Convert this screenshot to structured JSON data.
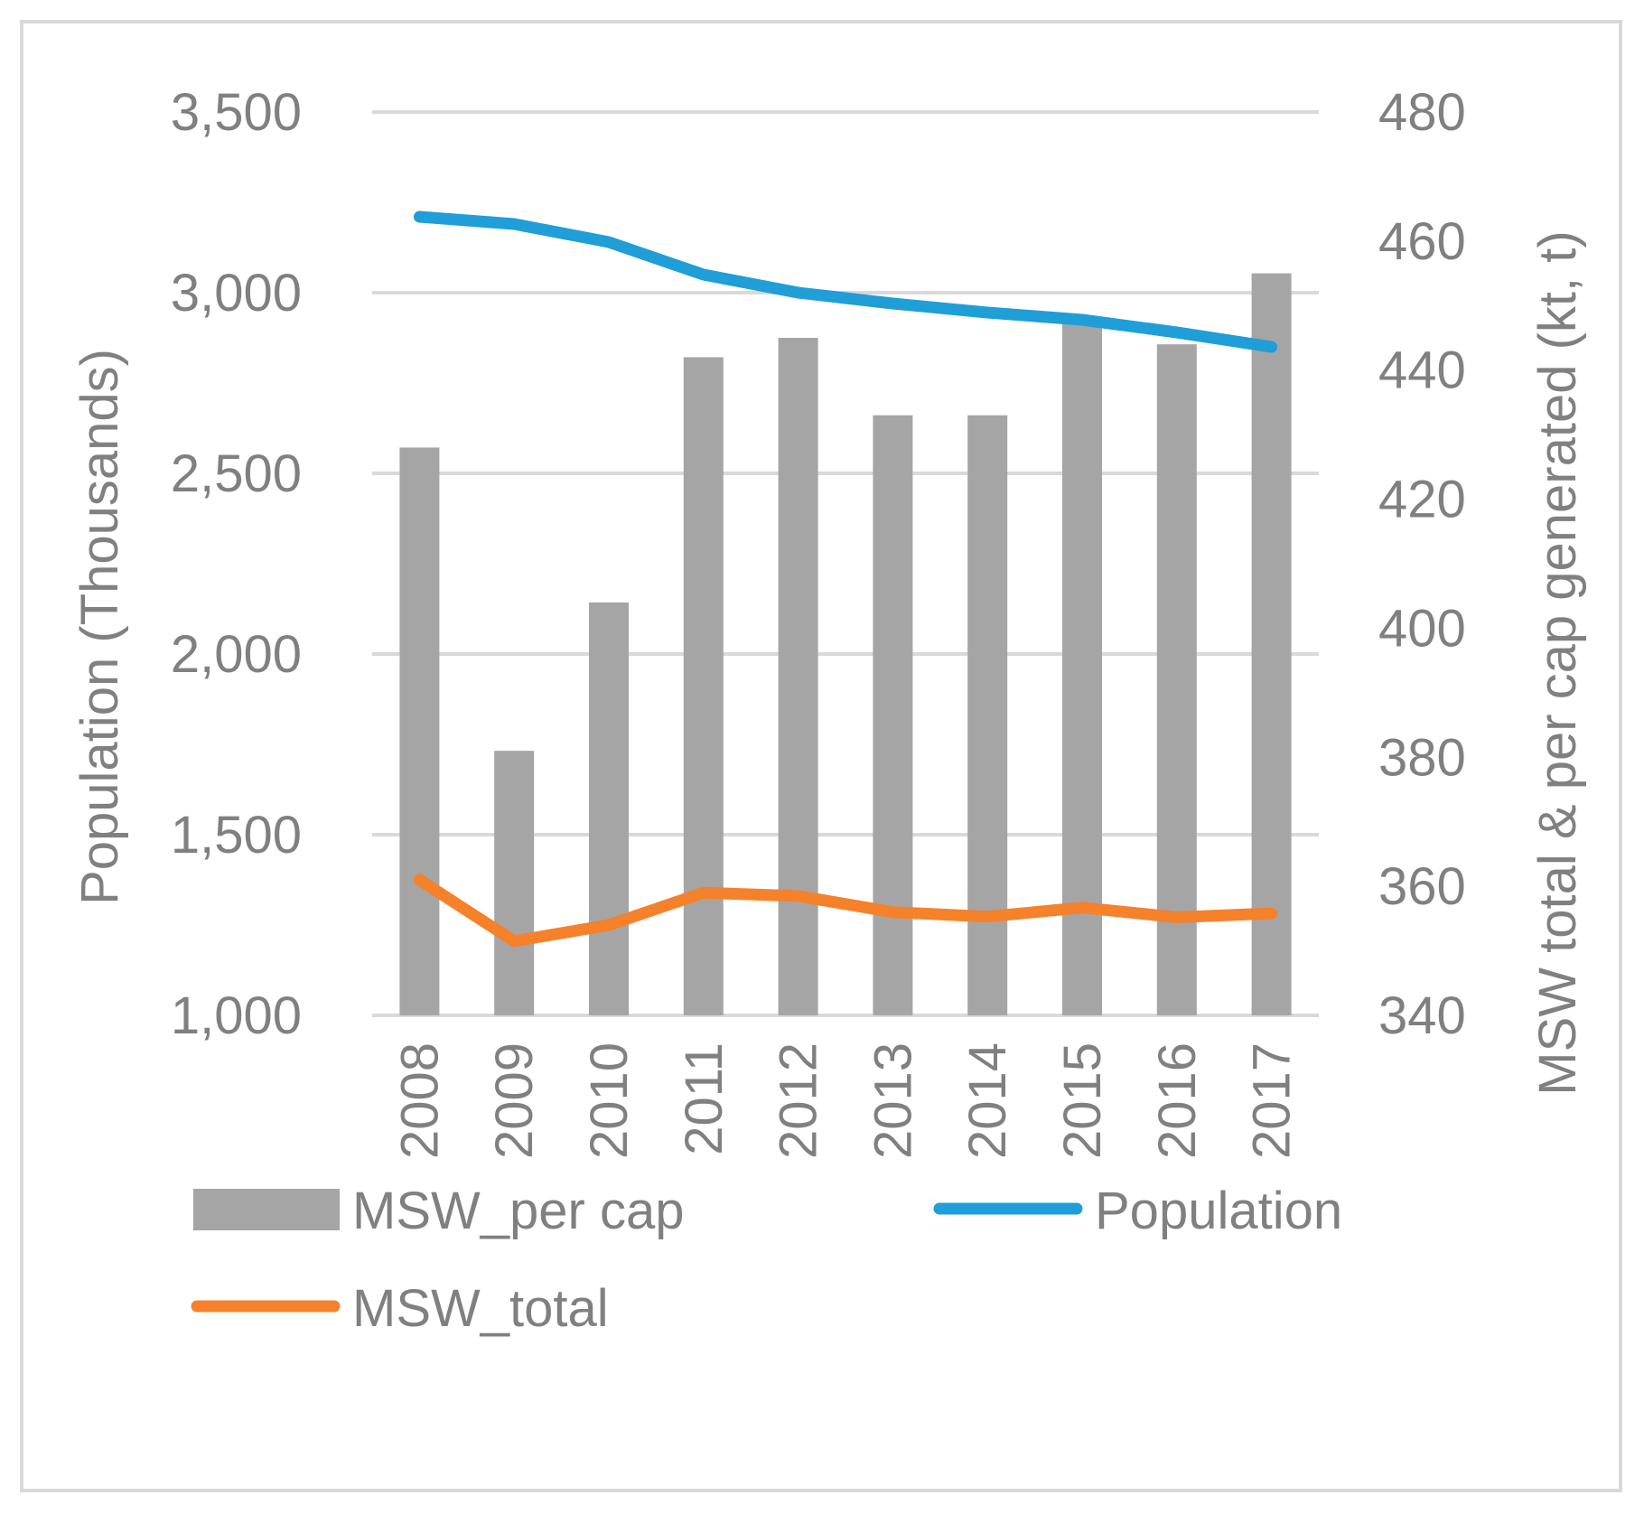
{
  "chart_data": {
    "type": "bar",
    "categories": [
      "2008",
      "2009",
      "2010",
      "2011",
      "2012",
      "2013",
      "2014",
      "2015",
      "2016",
      "2017"
    ],
    "series": [
      {
        "name": "MSW_per cap",
        "kind": "bar",
        "axis": "right",
        "color": "#a5a5a5",
        "values": [
          428,
          381,
          404,
          442,
          445,
          433,
          433,
          448,
          444,
          455
        ]
      },
      {
        "name": "Population",
        "kind": "line",
        "axis": "left",
        "color": "#1f9ed8",
        "values": [
          3210,
          3190,
          3140,
          3050,
          3000,
          2970,
          2945,
          2925,
          2890,
          2850
        ]
      },
      {
        "name": "MSW_total",
        "kind": "line",
        "axis": "right",
        "color": "#f5812a",
        "values": [
          361,
          351.5,
          354,
          359,
          358.5,
          356,
          355.3,
          356.7,
          355.2,
          355.8
        ]
      }
    ],
    "y_left": {
      "label": "Population (Thousands)",
      "ylim": [
        1000,
        3500
      ],
      "ticks": [
        1000,
        1500,
        2000,
        2500,
        3000,
        3500
      ],
      "tick_labels": [
        "1,000",
        "1,500",
        "2,000",
        "2,500",
        "3,000",
        "3,500"
      ]
    },
    "y_right": {
      "label": "MSW total & per cap generated (kt, t)",
      "ylim": [
        340,
        480
      ],
      "ticks": [
        340,
        360,
        380,
        400,
        420,
        440,
        460,
        480
      ],
      "tick_labels": [
        "340",
        "360",
        "380",
        "400",
        "420",
        "440",
        "460",
        "480"
      ]
    },
    "grid": true,
    "legend_position": "bottom",
    "title": ""
  }
}
